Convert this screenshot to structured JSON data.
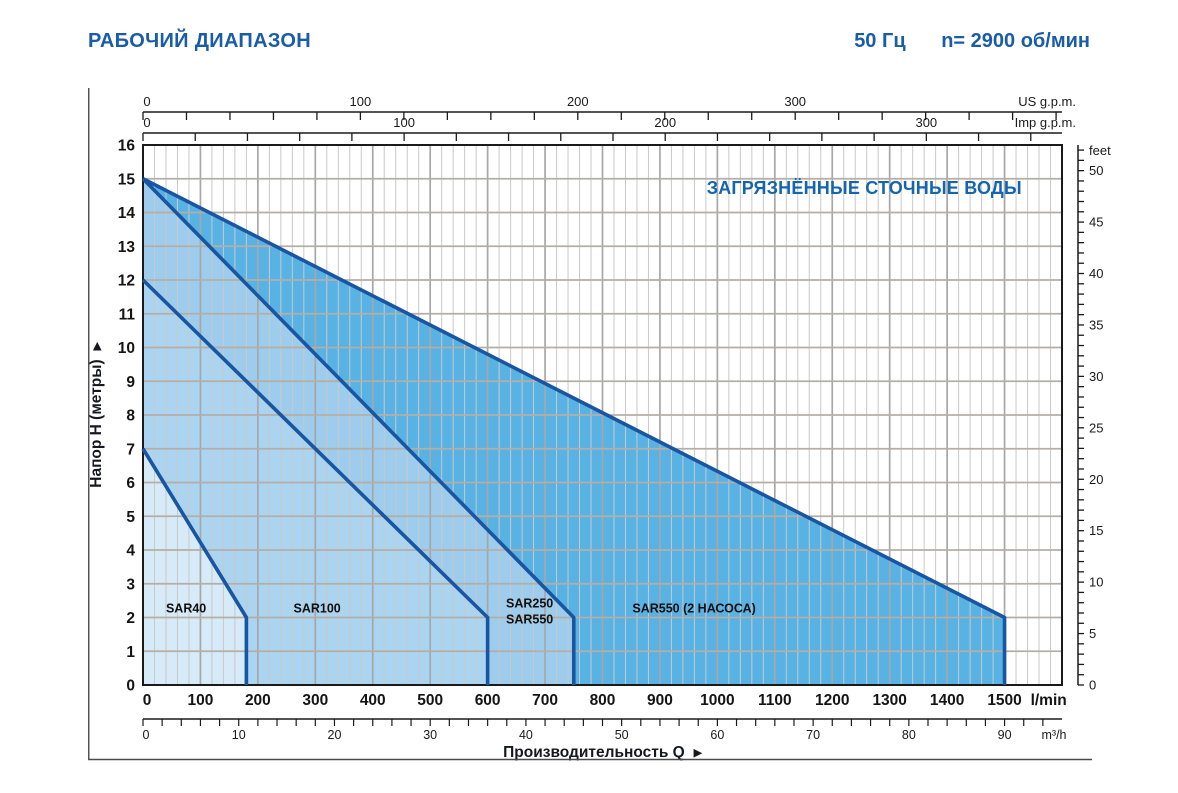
{
  "header": {
    "title": "РАБОЧИЙ ДИАПАЗОН",
    "frequency": "50 Гц",
    "speed": "n= 2900 об/мин"
  },
  "colors": {
    "brand_blue": "#1a5da6",
    "curve_line": "#1856a3",
    "grid_minor": "#c9c9c9",
    "grid_major": "#a7a7a7",
    "grid_horizontal": "#b5aea6",
    "axis_black": "#1a1a1a",
    "border_gray": "#4a4a4a",
    "region_sar40": "#d6eaf8",
    "region_sar100": "#abd4f0",
    "region_sar250_550": "#9dccec",
    "region_sar550_2": "#58b2e4"
  },
  "chart_data": {
    "type": "area",
    "inside_title": "ЗАГРЯЗНЁННЫЕ СТОЧНЫЕ ВОДЫ",
    "x_title": "Производительность Q",
    "y_title": "Напор H (метры)",
    "arrow": "▶",
    "x_axis": {
      "unit": "l/min",
      "max_lmin": 1600,
      "minor_step": 20,
      "major_step": 100,
      "label_step": 100,
      "label_max": 1500
    },
    "y_axis": {
      "unit": "м",
      "max_m": 16,
      "step": 1,
      "label_min": 0,
      "label_max": 16
    },
    "top_axes": [
      {
        "id": "us-gpm",
        "unit": "US g.p.m.",
        "lmin_per_unit": 3.785,
        "tick_step": 20,
        "labels": [
          0,
          100,
          200,
          300
        ]
      },
      {
        "id": "imp-gpm",
        "unit": "Imp g.p.m.",
        "lmin_per_unit": 4.546,
        "tick_step": 20,
        "labels": [
          0,
          100,
          200,
          300
        ]
      }
    ],
    "bottom_axis": {
      "id": "m3h",
      "unit": "m³/h",
      "lmin_per_unit": 16.667,
      "tick_step": 2,
      "label_step": 10,
      "label_max": 90
    },
    "right_axis": {
      "id": "feet",
      "unit": "feet",
      "m_per_unit": 0.3048,
      "tick_step": 1,
      "label_step": 5,
      "label_max": 50,
      "tick_max": 52
    },
    "regions": [
      {
        "name": "SAR550 (2 НАСОСА)",
        "fill_key": "region_sar550_2",
        "boundary_q_h": [
          [
            0,
            15
          ],
          [
            1500,
            2
          ],
          [
            1500,
            0
          ]
        ]
      },
      {
        "name": "SAR250 / SAR550",
        "fill_key": "region_sar250_550",
        "boundary_q_h": [
          [
            0,
            15
          ],
          [
            750,
            2
          ],
          [
            750,
            0
          ]
        ]
      },
      {
        "name": "SAR100",
        "fill_key": "region_sar100",
        "boundary_q_h": [
          [
            0,
            12
          ],
          [
            600,
            2
          ],
          [
            600,
            0
          ]
        ]
      },
      {
        "name": "SAR40",
        "fill_key": "region_sar40",
        "boundary_q_h": [
          [
            0,
            7
          ],
          [
            180,
            2
          ],
          [
            180,
            0
          ]
        ]
      }
    ],
    "region_labels": [
      {
        "lines": [
          "SAR40"
        ],
        "q": 40,
        "h": 2.15
      },
      {
        "lines": [
          "SAR100"
        ],
        "q": 262,
        "h": 2.15
      },
      {
        "lines": [
          "SAR250",
          "SAR550"
        ],
        "q": 632,
        "h": 2.3
      },
      {
        "lines": [
          "SAR550 (2 НАСОСА)"
        ],
        "q": 852,
        "h": 2.15
      }
    ],
    "inside_title_pos": {
      "q": 1530,
      "h": 14.55
    }
  }
}
